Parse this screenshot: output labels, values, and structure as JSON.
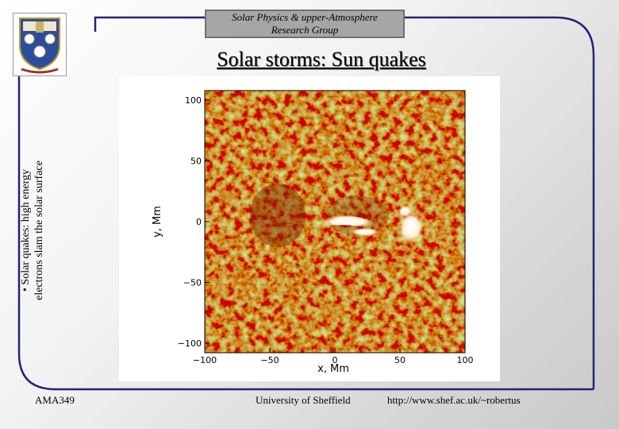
{
  "header": {
    "line1": "Solar Physics & upper-Atmosphere",
    "line2": "Research Group"
  },
  "logo": {
    "name": "university-crest"
  },
  "title": "Solar storms: Sun quakes",
  "sidebar": {
    "bullet": "•",
    "line1": "Solar quakes: high energy",
    "line2": "electrons slam the solar surface"
  },
  "figure": {
    "xlabel": "x, Mm",
    "ylabel": "y, Mm",
    "xticks": [
      "−100",
      "−50",
      "0",
      "50",
      "100"
    ],
    "yticks": [
      "100",
      "50",
      "0",
      "−50",
      "−100"
    ]
  },
  "footer": {
    "left": "AMA349",
    "center": "University of Sheffield",
    "right": "http://www.shef.ac.uk/~robertus"
  },
  "colors": {
    "frame": "#23237a",
    "header_bg": "#a6a6a6"
  }
}
